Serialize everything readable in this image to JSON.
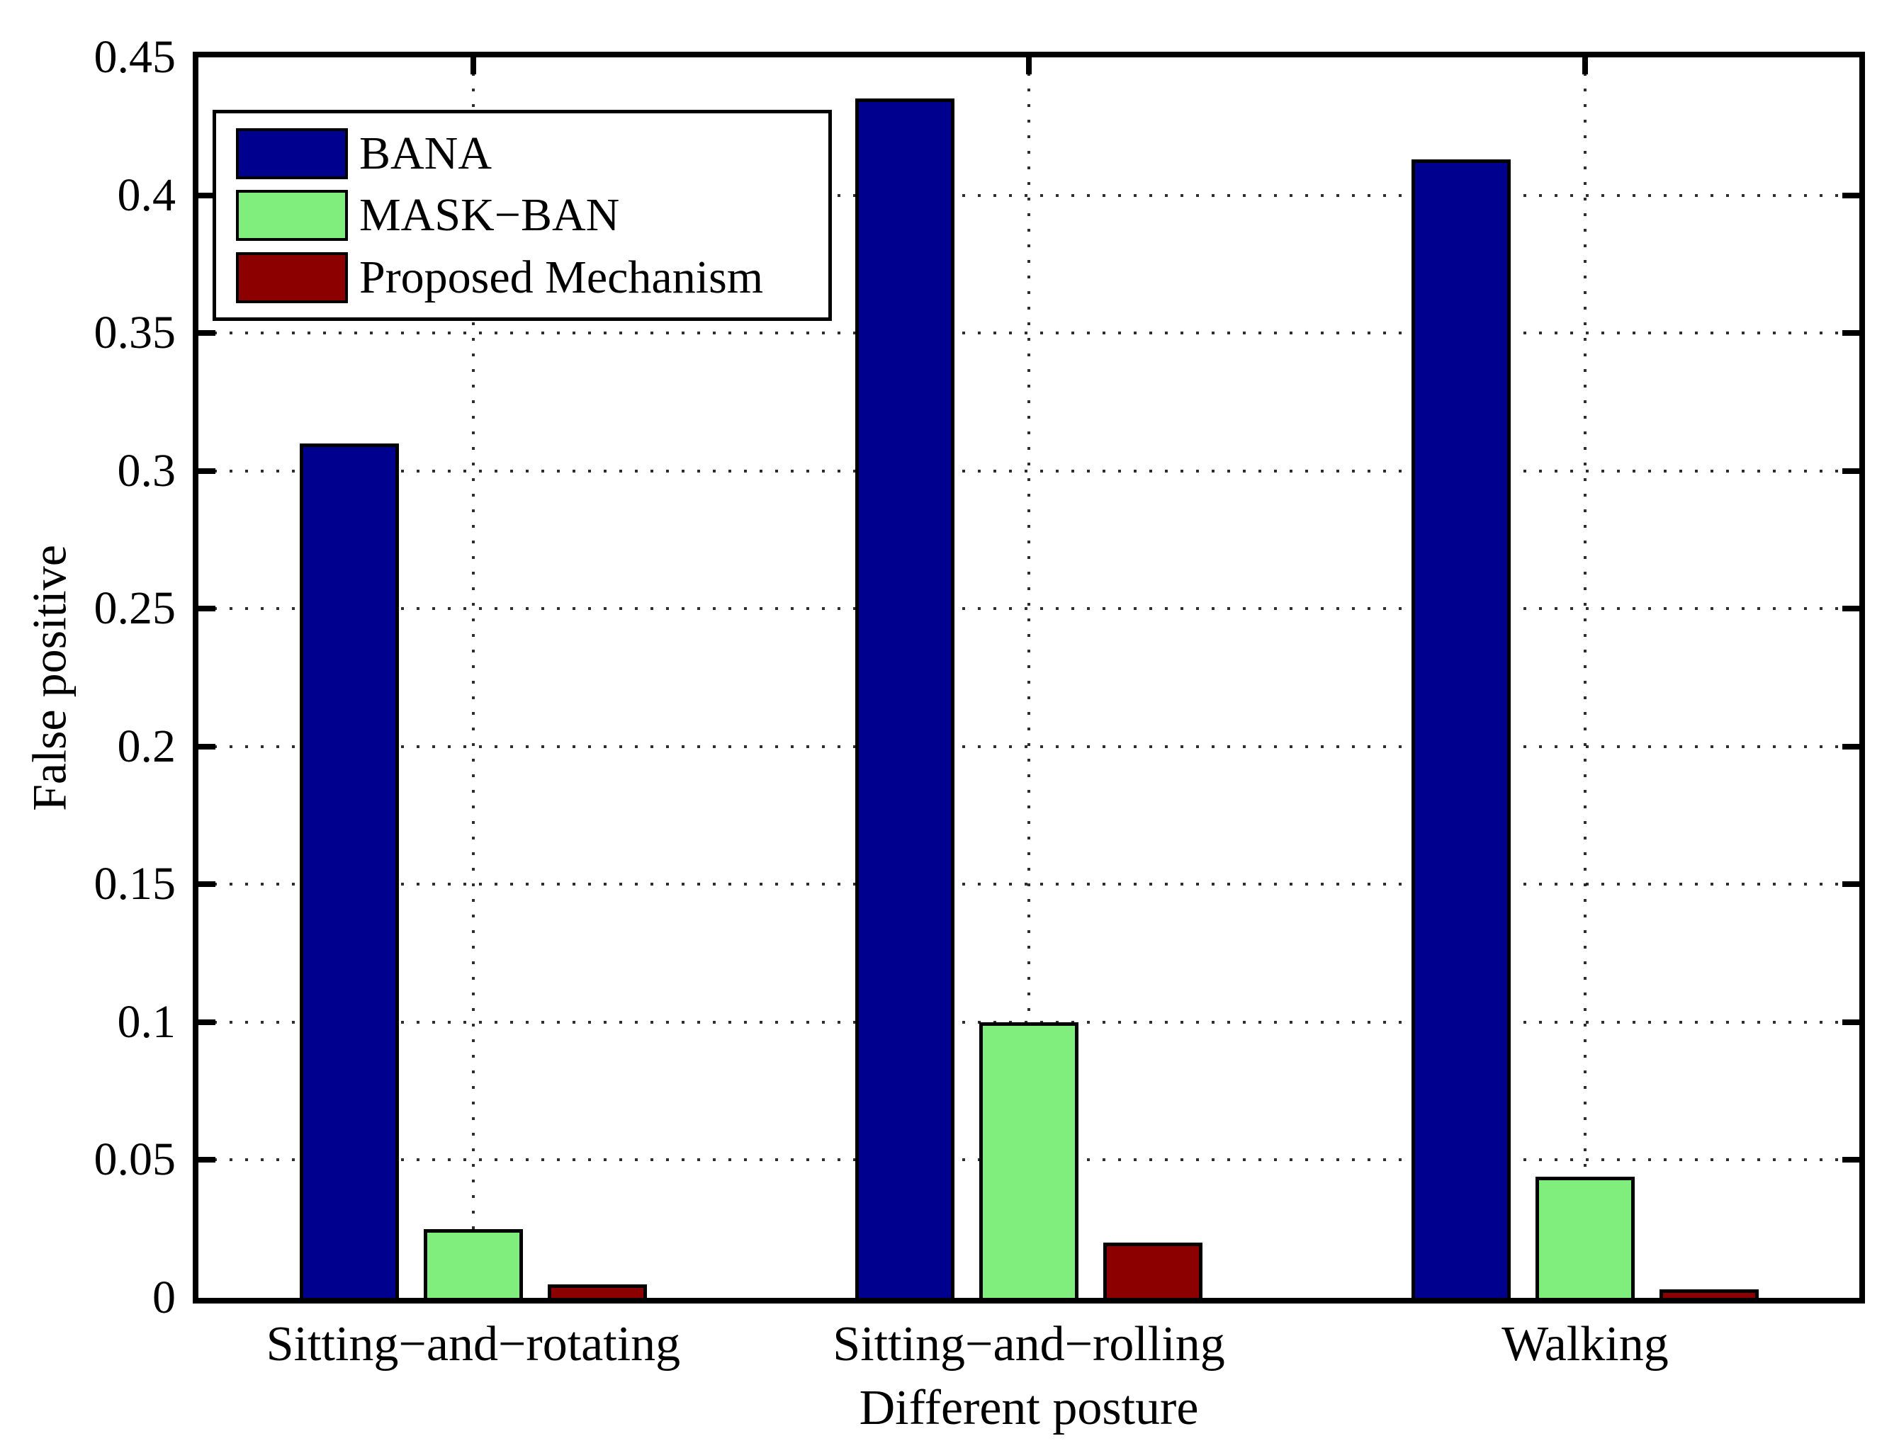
{
  "chart_data": {
    "type": "bar",
    "title": "",
    "xlabel": "Different posture",
    "ylabel": "False positive",
    "categories": [
      "Sitting−and−rotating",
      "Sitting−and−rolling",
      "Walking"
    ],
    "series": [
      {
        "name": "BANA",
        "color": "#00008F",
        "values": [
          0.31,
          0.435,
          0.413
        ]
      },
      {
        "name": "MASK−BAN",
        "color": "#7FEE7C",
        "values": [
          0.025,
          0.1,
          0.044
        ]
      },
      {
        "name": "Proposed Mechanism",
        "color": "#8C0000",
        "values": [
          0.005,
          0.02,
          0.003
        ]
      }
    ],
    "ylim": [
      0,
      0.45
    ],
    "ytick_step": 0.05,
    "yticks": [
      "0",
      "0.05",
      "0.1",
      "0.15",
      "0.2",
      "0.25",
      "0.3",
      "0.35",
      "0.4",
      "0.45"
    ],
    "grid": "dotted",
    "grid_color": "#000000",
    "axis_color": "#000000",
    "background_color": "#ffffff",
    "legend_position": "top-left"
  }
}
